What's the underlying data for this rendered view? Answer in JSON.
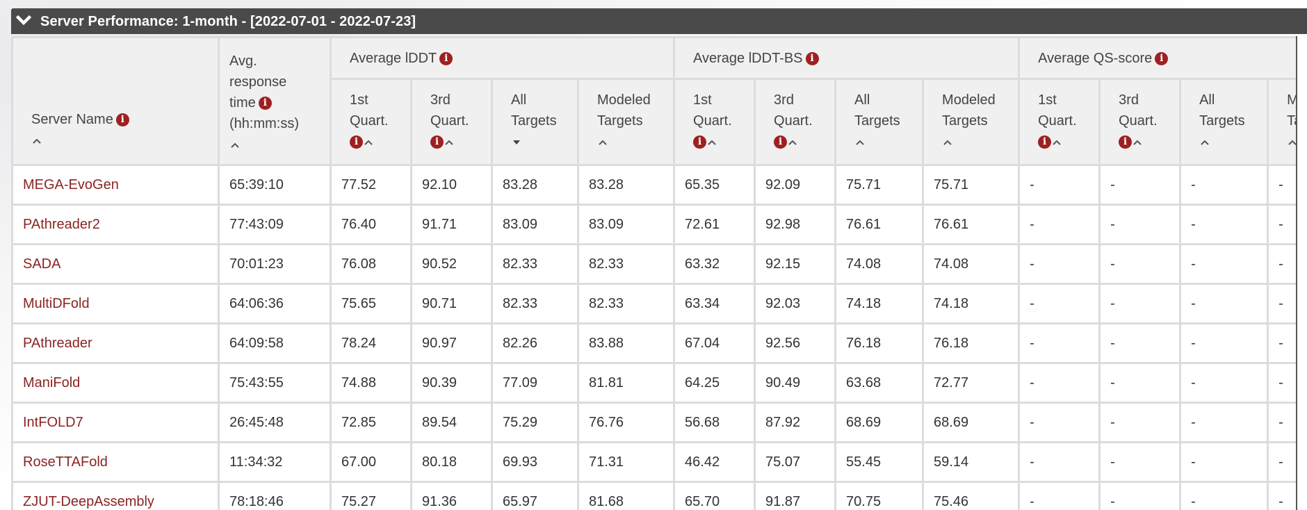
{
  "panel": {
    "title": "Server Performance: 1-month - [2022-07-01 - 2022-07-23]"
  },
  "columns": {
    "server_name": "Server Name",
    "avg_resp": [
      "Avg.",
      "response",
      "time",
      "(hh:mm:ss)"
    ],
    "groups": [
      "Average lDDT",
      "Average lDDT-BS",
      "Average QS-score"
    ],
    "sub": {
      "q1": [
        "1st",
        "Quart."
      ],
      "q3": [
        "3rd",
        "Quart."
      ],
      "all": [
        "All",
        "Targets"
      ],
      "mod": [
        "Modeled",
        "Targets"
      ],
      "mod_cut": [
        "M",
        "Ta"
      ]
    }
  },
  "rows": [
    {
      "name": "MEGA-EvoGen",
      "time": "65:39:10",
      "lddt": [
        "77.52",
        "92.10",
        "83.28",
        "83.28"
      ],
      "bs": [
        "65.35",
        "92.09",
        "75.71",
        "75.71"
      ],
      "qs": [
        "-",
        "-",
        "-",
        "-"
      ]
    },
    {
      "name": "PAthreader2",
      "time": "77:43:09",
      "lddt": [
        "76.40",
        "91.71",
        "83.09",
        "83.09"
      ],
      "bs": [
        "72.61",
        "92.98",
        "76.61",
        "76.61"
      ],
      "qs": [
        "-",
        "-",
        "-",
        "-"
      ]
    },
    {
      "name": "SADA",
      "time": "70:01:23",
      "lddt": [
        "76.08",
        "90.52",
        "82.33",
        "82.33"
      ],
      "bs": [
        "63.32",
        "92.15",
        "74.08",
        "74.08"
      ],
      "qs": [
        "-",
        "-",
        "-",
        "-"
      ]
    },
    {
      "name": "MultiDFold",
      "time": "64:06:36",
      "lddt": [
        "75.65",
        "90.71",
        "82.33",
        "82.33"
      ],
      "bs": [
        "63.34",
        "92.03",
        "74.18",
        "74.18"
      ],
      "qs": [
        "-",
        "-",
        "-",
        "-"
      ]
    },
    {
      "name": "PAthreader",
      "time": "64:09:58",
      "lddt": [
        "78.24",
        "90.97",
        "82.26",
        "83.88"
      ],
      "bs": [
        "67.04",
        "92.56",
        "76.18",
        "76.18"
      ],
      "qs": [
        "-",
        "-",
        "-",
        "-"
      ]
    },
    {
      "name": "ManiFold",
      "time": "75:43:55",
      "lddt": [
        "74.88",
        "90.39",
        "77.09",
        "81.81"
      ],
      "bs": [
        "64.25",
        "90.49",
        "63.68",
        "72.77"
      ],
      "qs": [
        "-",
        "-",
        "-",
        "-"
      ]
    },
    {
      "name": "IntFOLD7",
      "time": "26:45:48",
      "lddt": [
        "72.85",
        "89.54",
        "75.29",
        "76.76"
      ],
      "bs": [
        "56.68",
        "87.92",
        "68.69",
        "68.69"
      ],
      "qs": [
        "-",
        "-",
        "-",
        "-"
      ]
    },
    {
      "name": "RoseTTAFold",
      "time": "11:34:32",
      "lddt": [
        "67.00",
        "80.18",
        "69.93",
        "71.31"
      ],
      "bs": [
        "46.42",
        "75.07",
        "55.45",
        "59.14"
      ],
      "qs": [
        "-",
        "-",
        "-",
        "-"
      ]
    },
    {
      "name": "ZJUT-DeepAssembly",
      "time": "78:18:46",
      "lddt": [
        "75.27",
        "91.36",
        "65.97",
        "81.68"
      ],
      "bs": [
        "65.70",
        "91.87",
        "70.75",
        "75.46"
      ],
      "qs": [
        "-",
        "-",
        "-",
        "-"
      ]
    }
  ],
  "icons": {
    "info": "i",
    "collapse": "chevron-down-icon",
    "sort_asc": "sort-asc-icon",
    "sort_desc": "sort-desc-icon"
  },
  "colors": {
    "header_bg": "#4a4a4a",
    "link": "#8b2323",
    "info_icon": "#9e2021"
  }
}
